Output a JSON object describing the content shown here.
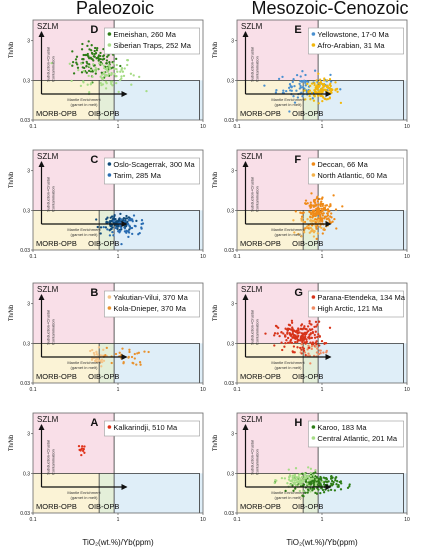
{
  "headers": {
    "left": "Paleozoic",
    "right": "Mesozoic-Cenozoic"
  },
  "axis_labels": {
    "x": "TiO₂(wt.%)/Yb(ppm)",
    "y": "Th/Nb"
  },
  "region_labels": {
    "szlm": "SZLM",
    "morb": "MORB-OPB",
    "oib": "OIB-OPB",
    "subduction": [
      "Subduction+Crustal",
      "Contamination"
    ],
    "mantle": [
      "Mantle Enrichment",
      "(garnet in melt)"
    ]
  },
  "colors": {
    "szlm_fill": "#f9dfe8",
    "morb_fill": "#fbf3d6",
    "oib_fill": "#dfeef8",
    "overlap_fill": "#e4efd9"
  },
  "chart_data": [
    {
      "panel": "D",
      "type": "scatter",
      "x_scale": "log",
      "y_scale": "log",
      "xlim": [
        0.1,
        10
      ],
      "ylim": [
        0.03,
        10
      ],
      "xticks": [
        "0.1",
        "1",
        "10"
      ],
      "yticks": [
        "0.03",
        "0.3",
        "3"
      ],
      "series": [
        {
          "name": "Emeishan, 260 Ma",
          "color": "#2e7d17",
          "cluster": {
            "cx": 0.55,
            "cy": 0.9,
            "sx": 0.3,
            "sy": 0.45,
            "n": 110
          }
        },
        {
          "name": "Siberian Traps, 252 Ma",
          "color": "#a6dc86",
          "cluster": {
            "cx": 0.7,
            "cy": 0.45,
            "sx": 0.4,
            "sy": 0.5,
            "n": 90
          }
        }
      ]
    },
    {
      "panel": "E",
      "type": "scatter",
      "x_scale": "log",
      "y_scale": "log",
      "xlim": [
        0.1,
        10
      ],
      "ylim": [
        0.03,
        10
      ],
      "xticks": [
        "0.1",
        "1",
        "10"
      ],
      "yticks": [
        "0.03",
        "0.3",
        "3"
      ],
      "series": [
        {
          "name": "Yellowstone, 17-0 Ma",
          "color": "#4a90d0",
          "cluster": {
            "cx": 0.6,
            "cy": 0.2,
            "sx": 0.35,
            "sy": 0.4,
            "n": 75
          }
        },
        {
          "name": "Afro-Arabian, 31 Ma",
          "color": "#f2b70c",
          "cluster": {
            "cx": 1.0,
            "cy": 0.17,
            "sx": 0.22,
            "sy": 0.28,
            "n": 110
          }
        }
      ]
    },
    {
      "panel": "C",
      "type": "scatter",
      "x_scale": "log",
      "y_scale": "log",
      "xlim": [
        0.1,
        10
      ],
      "ylim": [
        0.03,
        10
      ],
      "xticks": [
        "0.1",
        "1",
        "10"
      ],
      "yticks": [
        "0.03",
        "0.3",
        "3"
      ],
      "series": [
        {
          "name": "Oslo-Scagerrak, 300 Ma",
          "color": "#114b7a",
          "cluster": {
            "cx": 1.0,
            "cy": 0.14,
            "sx": 0.2,
            "sy": 0.22,
            "n": 90
          }
        },
        {
          "name": "Tarim, 285 Ma",
          "color": "#2a6db3",
          "cluster": {
            "cx": 1.3,
            "cy": 0.12,
            "sx": 0.28,
            "sy": 0.25,
            "n": 50
          }
        }
      ]
    },
    {
      "panel": "F",
      "type": "scatter",
      "x_scale": "log",
      "y_scale": "log",
      "xlim": [
        0.1,
        10
      ],
      "ylim": [
        0.03,
        10
      ],
      "xticks": [
        "0.1",
        "1",
        "10"
      ],
      "yticks": [
        "0.03",
        "0.3",
        "3"
      ],
      "series": [
        {
          "name": "Deccan, 66 Ma",
          "color": "#ef8a18",
          "cluster": {
            "cx": 0.9,
            "cy": 0.25,
            "sx": 0.2,
            "sy": 0.5,
            "n": 180
          }
        },
        {
          "name": "North Atlantic, 60 Ma",
          "color": "#f4b24a",
          "cluster": {
            "cx": 0.75,
            "cy": 0.12,
            "sx": 0.18,
            "sy": 0.3,
            "n": 40
          }
        }
      ]
    },
    {
      "panel": "B",
      "type": "scatter",
      "x_scale": "log",
      "y_scale": "log",
      "xlim": [
        0.1,
        10
      ],
      "ylim": [
        0.03,
        10
      ],
      "xticks": [
        "0.1",
        "1",
        "10"
      ],
      "yticks": [
        "0.03",
        "0.3",
        "3"
      ],
      "series": [
        {
          "name": "Yakutian-Vilui, 370 Ma",
          "color": "#f4c58a",
          "cluster": {
            "cx": 0.55,
            "cy": 0.13,
            "sx": 0.12,
            "sy": 0.25,
            "n": 35
          }
        },
        {
          "name": "Kola-Dnieper, 370 Ma",
          "color": "#e8922e",
          "cluster": {
            "cx": 1.2,
            "cy": 0.14,
            "sx": 0.28,
            "sy": 0.25,
            "n": 30
          }
        }
      ]
    },
    {
      "panel": "G",
      "type": "scatter",
      "x_scale": "log",
      "y_scale": "log",
      "xlim": [
        0.1,
        10
      ],
      "ylim": [
        0.03,
        10
      ],
      "xticks": [
        "0.1",
        "1",
        "10"
      ],
      "yticks": [
        "0.03",
        "0.3",
        "3"
      ],
      "series": [
        {
          "name": "Parana-Etendeka, 134 Ma",
          "color": "#d7341a",
          "cluster": {
            "cx": 0.55,
            "cy": 0.45,
            "sx": 0.3,
            "sy": 0.4,
            "n": 190
          }
        },
        {
          "name": "High Arctic, 121 Ma",
          "color": "#f08a62",
          "cluster": {
            "cx": 0.8,
            "cy": 0.18,
            "sx": 0.2,
            "sy": 0.2,
            "n": 25
          }
        }
      ]
    },
    {
      "panel": "A",
      "type": "scatter",
      "x_scale": "log",
      "y_scale": "log",
      "xlim": [
        0.1,
        10
      ],
      "ylim": [
        0.03,
        10
      ],
      "xticks": [
        "0.1",
        "1",
        "10"
      ],
      "yticks": [
        "0.03",
        "0.3",
        "3"
      ],
      "series": [
        {
          "name": "Kalkarindji, 510 Ma",
          "color": "#e0321a",
          "cluster": {
            "cx": 0.38,
            "cy": 1.2,
            "sx": 0.05,
            "sy": 0.12,
            "n": 12
          }
        }
      ]
    },
    {
      "panel": "H",
      "type": "scatter",
      "x_scale": "log",
      "y_scale": "log",
      "xlim": [
        0.1,
        10
      ],
      "ylim": [
        0.03,
        10
      ],
      "xticks": [
        "0.1",
        "1",
        "10"
      ],
      "yticks": [
        "0.03",
        "0.3",
        "3"
      ],
      "series": [
        {
          "name": "Karoo, 183 Ma",
          "color": "#2e7d17",
          "cluster": {
            "cx": 0.9,
            "cy": 0.17,
            "sx": 0.3,
            "sy": 0.25,
            "n": 170
          }
        },
        {
          "name": "Central Atlantic, 201 Ma",
          "color": "#a6dc86",
          "cluster": {
            "cx": 0.55,
            "cy": 0.2,
            "sx": 0.25,
            "sy": 0.25,
            "n": 90
          }
        }
      ]
    }
  ]
}
